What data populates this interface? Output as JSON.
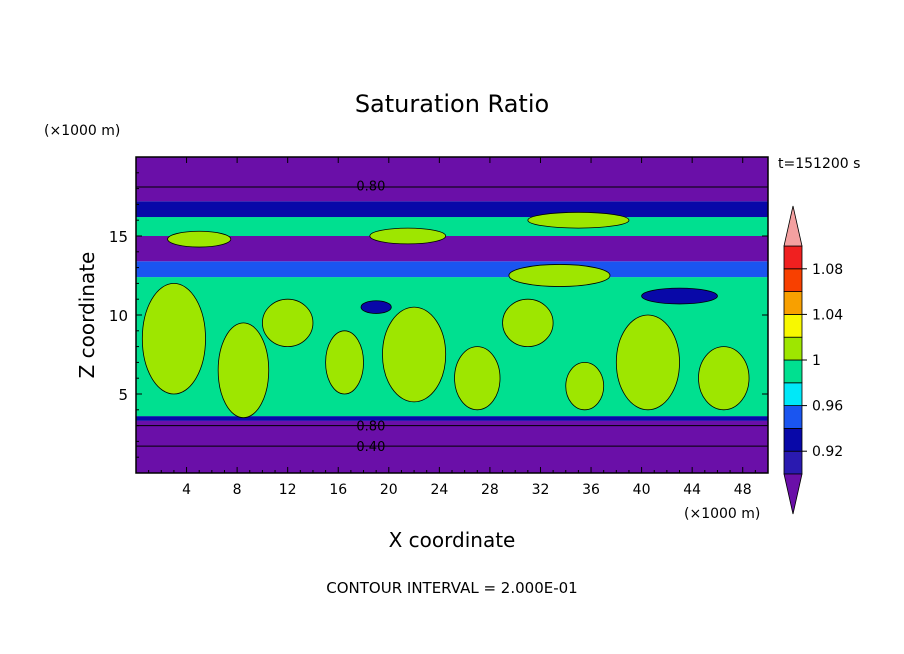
{
  "chart_data": {
    "type": "heatmap",
    "title": "Saturation Ratio",
    "xlabel": "X coordinate",
    "ylabel": "Z coordinate",
    "x_unit": "(×1000 m)",
    "y_unit": "(×1000 m)",
    "time_label": "t=151200 s",
    "contour_interval_label": "CONTOUR INTERVAL = 2.000E-01",
    "xlim": [
      0,
      50
    ],
    "ylim": [
      0,
      20
    ],
    "x_ticks": [
      4,
      8,
      12,
      16,
      20,
      24,
      28,
      32,
      36,
      40,
      44,
      48
    ],
    "x_tick_labels": [
      "4",
      "8",
      "12",
      "16",
      "20",
      "24",
      "28",
      "32",
      "36",
      "40",
      "44",
      "48"
    ],
    "y_ticks": [
      5,
      10,
      15
    ],
    "y_tick_labels": [
      "5",
      "10",
      "15"
    ],
    "contour_labels": [
      {
        "text": "0.80",
        "x": 17.0,
        "z": 18.2
      },
      {
        "text": "0.80",
        "x": 17.0,
        "z": 3.0
      },
      {
        "text": "0.40",
        "x": 17.0,
        "z": 1.7
      }
    ],
    "colorbar": {
      "levels": [
        0.9,
        0.92,
        0.94,
        0.96,
        0.98,
        1.0,
        1.02,
        1.04,
        1.06,
        1.08,
        1.1
      ],
      "tick_labels": [
        "0.92",
        "0.96",
        "1",
        "1.04",
        "1.08"
      ],
      "tick_values": [
        0.92,
        0.96,
        1.0,
        1.04,
        1.08
      ],
      "colors": [
        "#6a0fa8",
        "#2a1ab0",
        "#0808a8",
        "#1a55f0",
        "#00e8f8",
        "#00e090",
        "#9ee600",
        "#f8f800",
        "#f8a000",
        "#f84000",
        "#f02020"
      ],
      "under_color": "#6a0fa8",
      "over_color": "#f4a0a0"
    },
    "field_bands": [
      {
        "z0": 0.0,
        "z1": 1.7,
        "value": 0.4
      },
      {
        "z0": 1.7,
        "z1": 3.0,
        "value": 0.6
      },
      {
        "z0": 3.0,
        "z1": 3.3,
        "value": 0.8
      },
      {
        "z0": 3.3,
        "z1": 3.6,
        "value": 0.95
      },
      {
        "z0": 3.6,
        "z1": 12.4,
        "value": 1.0
      },
      {
        "z0": 12.4,
        "z1": 13.4,
        "value": 0.97
      },
      {
        "z0": 13.4,
        "z1": 15.0,
        "value": 0.85
      },
      {
        "z0": 15.0,
        "z1": 16.2,
        "value": 1.0
      },
      {
        "z0": 16.2,
        "z1": 17.2,
        "value": 0.94
      },
      {
        "z0": 17.2,
        "z1": 18.1,
        "value": 0.88
      },
      {
        "z0": 18.1,
        "z1": 20.0,
        "value": 0.8
      }
    ],
    "field_blobs": [
      {
        "x": 3.0,
        "z": 8.5,
        "rx": 2.5,
        "rz": 3.5,
        "value": 1.02
      },
      {
        "x": 8.5,
        "z": 6.5,
        "rx": 2.0,
        "rz": 3.0,
        "value": 1.02
      },
      {
        "x": 12.0,
        "z": 9.5,
        "rx": 2.0,
        "rz": 1.5,
        "value": 1.02
      },
      {
        "x": 16.5,
        "z": 7.0,
        "rx": 1.5,
        "rz": 2.0,
        "value": 1.02
      },
      {
        "x": 22.0,
        "z": 7.5,
        "rx": 2.5,
        "rz": 3.0,
        "value": 1.02
      },
      {
        "x": 27.0,
        "z": 6.0,
        "rx": 1.8,
        "rz": 2.0,
        "value": 1.02
      },
      {
        "x": 31.0,
        "z": 9.5,
        "rx": 2.0,
        "rz": 1.5,
        "value": 1.02
      },
      {
        "x": 35.5,
        "z": 5.5,
        "rx": 1.5,
        "rz": 1.5,
        "value": 1.02
      },
      {
        "x": 40.5,
        "z": 7.0,
        "rx": 2.5,
        "rz": 3.0,
        "value": 1.02
      },
      {
        "x": 46.5,
        "z": 6.0,
        "rx": 2.0,
        "rz": 2.0,
        "value": 1.02
      },
      {
        "x": 5.0,
        "z": 14.8,
        "rx": 2.5,
        "rz": 0.5,
        "value": 1.02
      },
      {
        "x": 21.5,
        "z": 15.0,
        "rx": 3.0,
        "rz": 0.5,
        "value": 1.02
      },
      {
        "x": 35.0,
        "z": 16.0,
        "rx": 4.0,
        "rz": 0.5,
        "value": 1.02
      },
      {
        "x": 33.5,
        "z": 12.5,
        "rx": 4.0,
        "rz": 0.7,
        "value": 1.02
      },
      {
        "x": 19.0,
        "z": 10.5,
        "rx": 1.2,
        "rz": 0.4,
        "value": 0.94
      },
      {
        "x": 43.0,
        "z": 11.2,
        "rx": 3.0,
        "rz": 0.5,
        "value": 0.95
      }
    ]
  }
}
